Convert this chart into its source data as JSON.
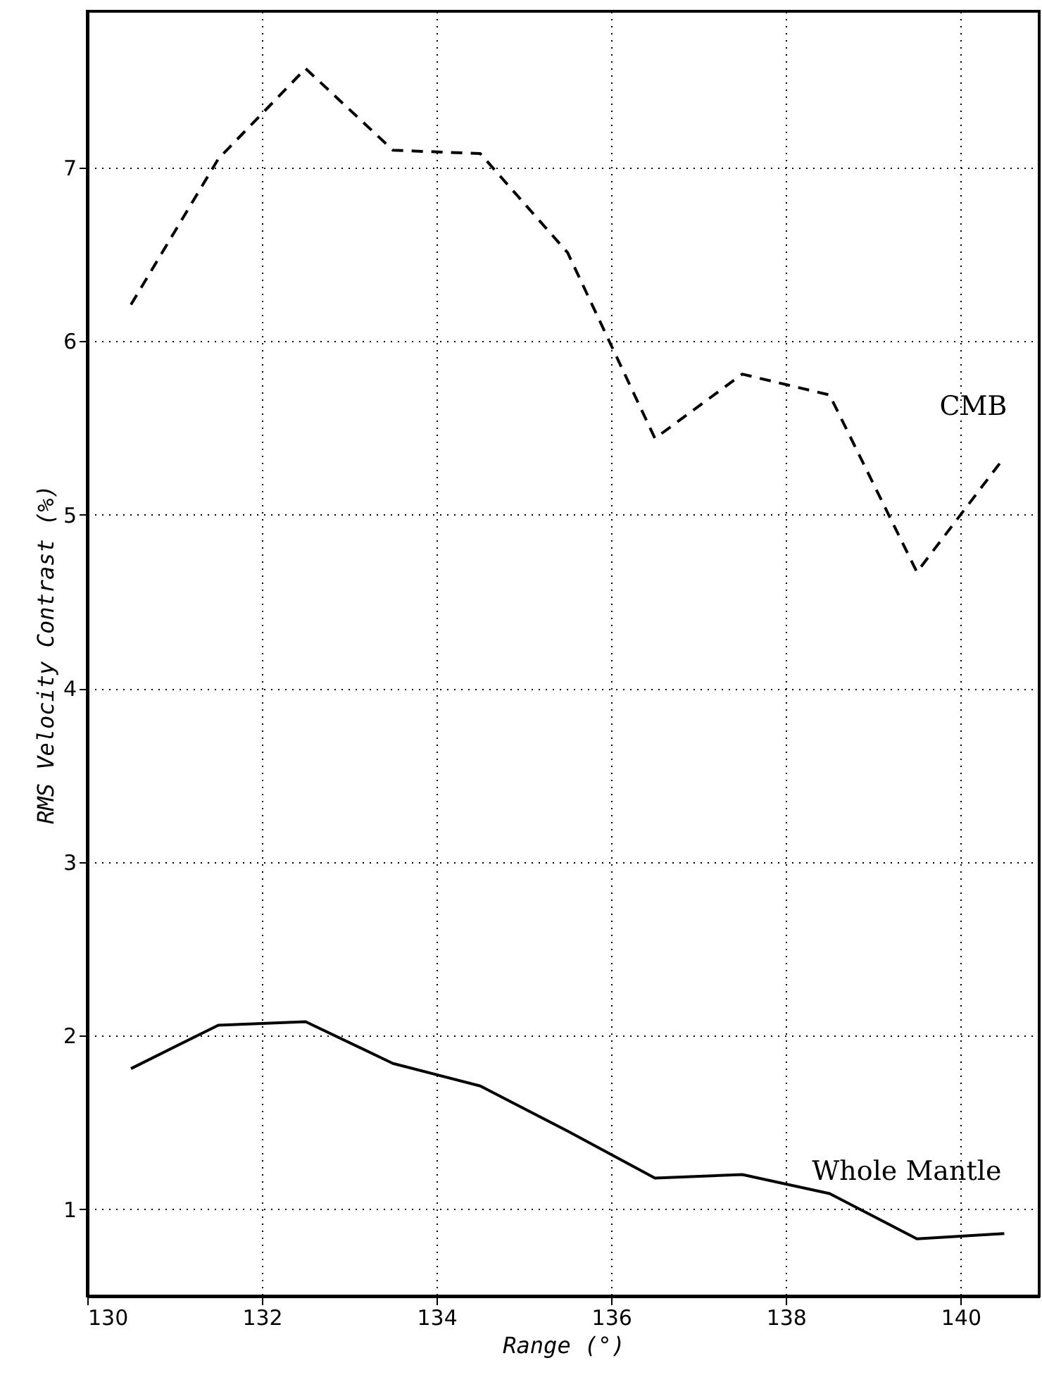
{
  "chart_data": {
    "type": "line",
    "xlabel": "Range (°)",
    "ylabel": "RMS Velocity Contrast (%)",
    "xlim": [
      130,
      140.9
    ],
    "xticks": [
      130,
      132,
      134,
      136,
      138,
      140
    ],
    "ylim": [
      0.5,
      7.9
    ],
    "yticks": [
      1,
      2,
      3,
      4,
      5,
      6,
      7
    ],
    "grid": true,
    "series": [
      {
        "name": "CMB",
        "color": "#000000",
        "line_style": "dashed",
        "x": [
          130.5,
          131.5,
          132.5,
          133.5,
          134.5,
          135.5,
          136.5,
          137.5,
          138.5,
          139.5,
          140.5
        ],
        "values": [
          6.21,
          7.05,
          7.57,
          7.1,
          7.08,
          6.51,
          5.44,
          5.81,
          5.69,
          4.67,
          5.33
        ]
      },
      {
        "name": "Whole Mantle",
        "color": "#000000",
        "line_style": "solid",
        "x": [
          130.5,
          131.5,
          132.5,
          133.5,
          134.5,
          135.5,
          136.5,
          137.5,
          138.5,
          139.5,
          140.5
        ],
        "values": [
          1.81,
          2.06,
          2.08,
          1.84,
          1.71,
          1.45,
          1.18,
          1.2,
          1.09,
          0.83,
          0.86
        ]
      }
    ]
  }
}
